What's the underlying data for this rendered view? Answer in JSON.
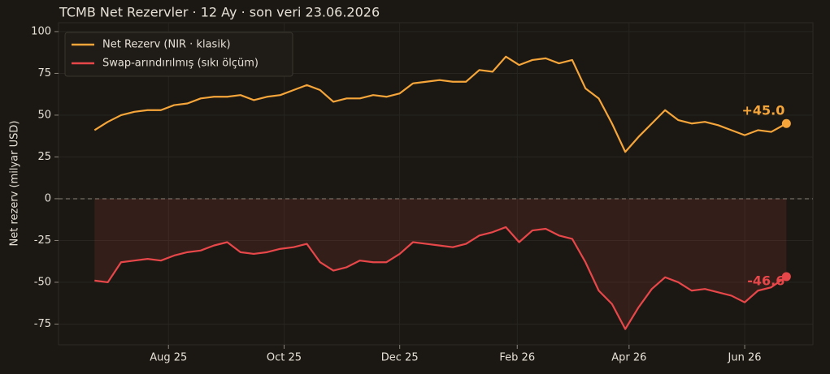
{
  "chart_data": {
    "type": "line",
    "title": "TCMB Net Rezervler · 12 Ay · son veri 23.06.2026",
    "y_label": "Net rezerv (milyar USD)",
    "x": [
      "2025-06-23",
      "2025-06-30",
      "2025-07-07",
      "2025-07-14",
      "2025-07-21",
      "2025-07-28",
      "2025-08-04",
      "2025-08-11",
      "2025-08-18",
      "2025-08-25",
      "2025-09-01",
      "2025-09-08",
      "2025-09-15",
      "2025-09-22",
      "2025-09-29",
      "2025-10-06",
      "2025-10-13",
      "2025-10-20",
      "2025-10-27",
      "2025-11-03",
      "2025-11-10",
      "2025-11-17",
      "2025-11-24",
      "2025-12-01",
      "2025-12-08",
      "2025-12-15",
      "2025-12-22",
      "2025-12-29",
      "2026-01-05",
      "2026-01-12",
      "2026-01-19",
      "2026-01-26",
      "2026-02-02",
      "2026-02-09",
      "2026-02-16",
      "2026-02-23",
      "2026-03-02",
      "2026-03-09",
      "2026-03-16",
      "2026-03-23",
      "2026-03-30",
      "2026-04-06",
      "2026-04-13",
      "2026-04-20",
      "2026-04-27",
      "2026-05-04",
      "2026-05-11",
      "2026-05-18",
      "2026-05-25",
      "2026-06-01",
      "2026-06-08",
      "2026-06-15",
      "2026-06-23"
    ],
    "series": [
      {
        "name": "Net Rezerv (NIR · klasik)",
        "color": "#f5a53a",
        "values": [
          41,
          46,
          50,
          52,
          53,
          53,
          56,
          57,
          60,
          61,
          61,
          62,
          59,
          61,
          62,
          65,
          68,
          65,
          58,
          60,
          60,
          62,
          61,
          63,
          69,
          70,
          71,
          70,
          70,
          77,
          76,
          85,
          80,
          83,
          84,
          81,
          83,
          66,
          60,
          45,
          28,
          37,
          45,
          53,
          47,
          45,
          46,
          44,
          41,
          38,
          41,
          40,
          45.0
        ],
        "value_labels": [
          null,
          null,
          null,
          null,
          null,
          null,
          null,
          null,
          null,
          null,
          null,
          null,
          null,
          null,
          null,
          null,
          null,
          null,
          null,
          null,
          null,
          null,
          null,
          null,
          null,
          null,
          null,
          null,
          null,
          null,
          null,
          null,
          null,
          null,
          null,
          null,
          null,
          null,
          null,
          null,
          null,
          null,
          null,
          null,
          null,
          null,
          null,
          null,
          null,
          null,
          null,
          null,
          "+45.0"
        ]
      },
      {
        "name": "Swap-arındırılmış (sıkı ölçüm)",
        "color": "#e8474a",
        "values": [
          -49,
          -50,
          -38,
          -37,
          -36,
          -37,
          -34,
          -32,
          -31,
          -28,
          -26,
          -32,
          -33,
          -32,
          -30,
          -29,
          -27,
          -38,
          -43,
          -41,
          -37,
          -38,
          -38,
          -33,
          -26,
          -27,
          -28,
          -29,
          -27,
          -22,
          -20,
          -17,
          -26,
          -19,
          -18,
          -22,
          -24,
          -38,
          -55,
          -63,
          -78,
          -65,
          -54,
          -47,
          -50,
          -55,
          -54,
          -56,
          -58,
          -62,
          -55,
          -53,
          -46.6
        ],
        "value_labels": [
          null,
          null,
          null,
          null,
          null,
          null,
          null,
          null,
          null,
          null,
          null,
          null,
          null,
          null,
          null,
          null,
          null,
          null,
          null,
          null,
          null,
          null,
          null,
          null,
          null,
          null,
          null,
          null,
          null,
          null,
          null,
          null,
          null,
          null,
          null,
          null,
          null,
          null,
          null,
          null,
          null,
          null,
          null,
          null,
          null,
          null,
          null,
          null,
          null,
          null,
          null,
          null,
          "-46.6"
        ]
      }
    ],
    "xlim": [
      "2025-06-04",
      "2026-07-07"
    ],
    "xticks": [
      {
        "value": "2025-08-01",
        "label": "Aug 25"
      },
      {
        "value": "2025-10-01",
        "label": "Oct 25"
      },
      {
        "value": "2025-12-01",
        "label": "Dec 25"
      },
      {
        "value": "2026-02-01",
        "label": "Feb 26"
      },
      {
        "value": "2026-04-01",
        "label": "Apr 26"
      },
      {
        "value": "2026-06-01",
        "label": "Jun 26"
      }
    ],
    "ylim": [
      -87.4,
      105.3
    ],
    "yticks": [
      -75,
      -50,
      -25,
      0,
      25,
      50,
      75,
      100
    ],
    "grid": true,
    "legend": "upper left"
  }
}
